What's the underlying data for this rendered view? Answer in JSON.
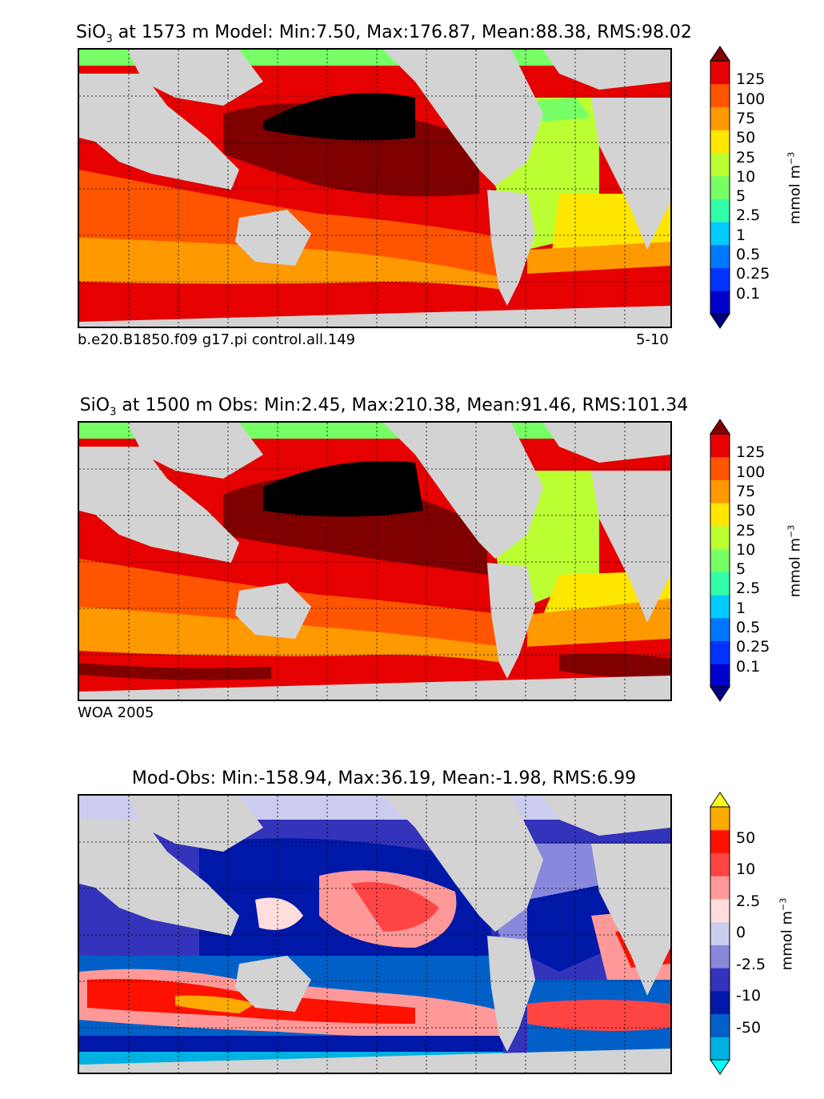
{
  "panels": [
    {
      "title_main": "SiO",
      "title_sub": "3",
      "title_rest": "at 1573 m Model: Min:7.50, Max:176.87, Mean:88.38, RMS:98.02",
      "caption_left": "b.e20.B1850.f09 g17.pi control.all.149",
      "caption_right": "5-10",
      "colorbar": {
        "ticks": [
          "125",
          "100",
          "75",
          "50",
          "25",
          "10",
          "5",
          "2.5",
          "1",
          "0.5",
          "0.25",
          "0.1"
        ],
        "colors": [
          "#000080",
          "#0000cd",
          "#0033ff",
          "#0077ff",
          "#00ccff",
          "#33ffaa",
          "#77ff66",
          "#bbff33",
          "#ffe600",
          "#ff9900",
          "#ff5500",
          "#e60000",
          "#800000"
        ],
        "unit_main": "mmol m",
        "unit_sup": "−3"
      }
    },
    {
      "title_main": "SiO",
      "title_sub": "3",
      "title_rest": "at 1500 m Obs: Min:2.45, Max:210.38, Mean:91.46, RMS:101.34",
      "caption_left": "WOA 2005",
      "caption_right": "",
      "colorbar": {
        "ticks": [
          "125",
          "100",
          "75",
          "50",
          "25",
          "10",
          "5",
          "2.5",
          "1",
          "0.5",
          "0.25",
          "0.1"
        ],
        "colors": [
          "#000080",
          "#0000cd",
          "#0033ff",
          "#0077ff",
          "#00ccff",
          "#33ffaa",
          "#77ff66",
          "#bbff33",
          "#ffe600",
          "#ff9900",
          "#ff5500",
          "#e60000",
          "#800000"
        ],
        "unit_main": "mmol m",
        "unit_sup": "−3"
      }
    },
    {
      "title_main": "",
      "title_sub": "",
      "title_rest": "Mod-Obs: Min:-158.94, Max:36.19, Mean:-1.98, RMS:6.99",
      "caption_left": "",
      "caption_right": "",
      "colorbar": {
        "ticks": [
          "50",
          "10",
          "2.5",
          "0",
          "-2.5",
          "-10",
          "-50"
        ],
        "colors": [
          "#00ffff",
          "#00b0e0",
          "#0060c8",
          "#0018a8",
          "#3333bb",
          "#8888dd",
          "#ccccee",
          "#ffdddd",
          "#ff9999",
          "#ff4444",
          "#ff1100",
          "#ffaa00",
          "#ffff22"
        ],
        "unit_main": "mmol m",
        "unit_sup": "−3"
      }
    }
  ],
  "map_colors": {
    "land": "#d3d3d3",
    "ice": "#ffffff",
    "north_pacific_core": "#000000",
    "grid": "#000000"
  }
}
